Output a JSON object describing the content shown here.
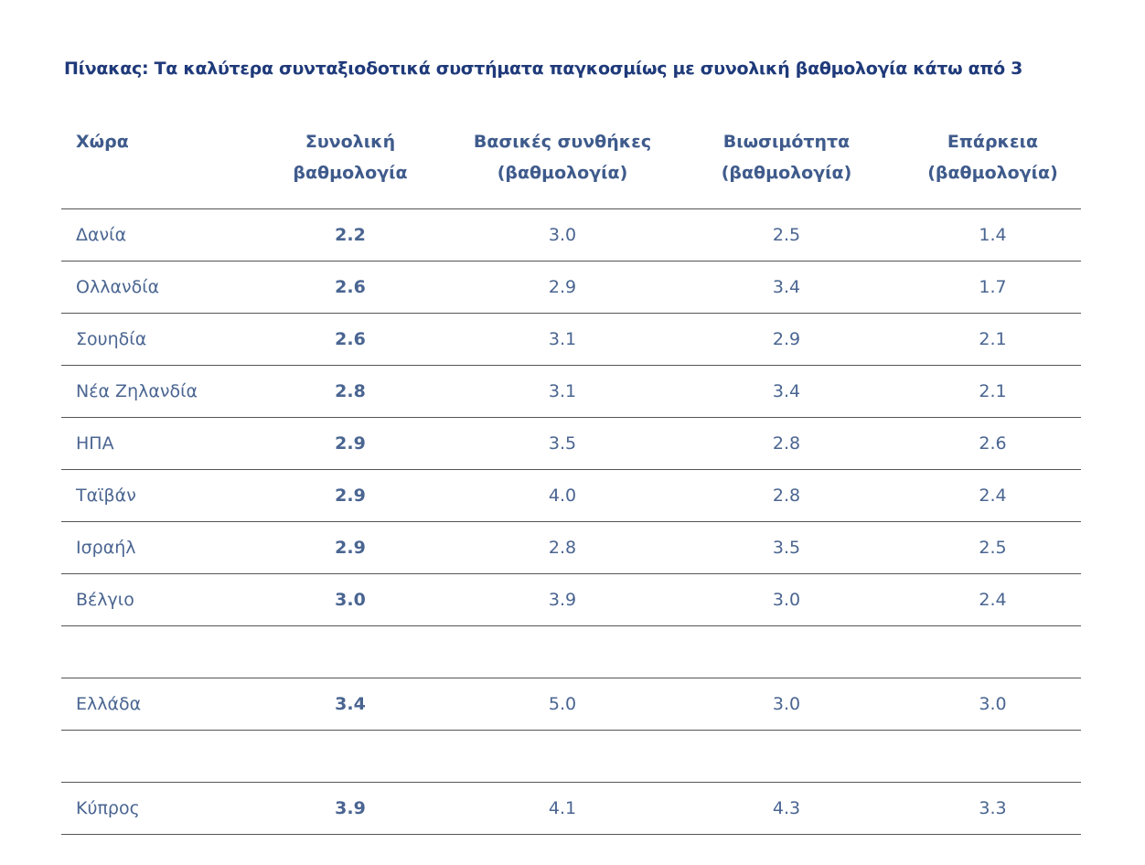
{
  "title": "Πίνακας: Τα καλύτερα συνταξιοδοτικά συστήματα παγκοσμίως με συνολική βαθμολογία κάτω από 3",
  "headers": [
    [
      "Χώρα",
      ""
    ],
    [
      "Συνολική",
      "βαθμολογία"
    ],
    [
      "Βασικές συνθήκες",
      "(βαθμολογία)"
    ],
    [
      "Βιωσιμότητα",
      "(βαθμολογία)"
    ],
    [
      "Επάρκεια",
      "(βαθμολογία)"
    ]
  ],
  "rows": [
    [
      "Δανία",
      "2.2",
      "3.0",
      "2.5",
      "1.4"
    ],
    [
      "Ολλανδία",
      "2.6",
      "2.9",
      "3.4",
      "1.7"
    ],
    [
      "Σουηδία",
      "2.6",
      "3.1",
      "2.9",
      "2.1"
    ],
    [
      "Νέα Ζηλανδία",
      "2.8",
      "3.1",
      "3.4",
      "2.1"
    ],
    [
      "ΗΠΑ",
      "2.9",
      "3.5",
      "2.8",
      "2.6"
    ],
    [
      "Ταϊβάν",
      "2.9",
      "4.0",
      "2.8",
      "2.4"
    ],
    [
      "Ισραήλ",
      "2.9",
      "2.8",
      "3.5",
      "2.5"
    ],
    [
      "Βέλγιο",
      "3.0",
      "3.9",
      "3.0",
      "2.4"
    ],
    [
      "",
      "",
      "",
      "",
      ""
    ],
    [
      "Ελλάδα",
      "3.4",
      "5.0",
      "3.0",
      "3.0"
    ],
    [
      "",
      "",
      "",
      "",
      ""
    ],
    [
      "Κύπρος",
      "3.9",
      "4.1",
      "4.3",
      "3.3"
    ]
  ]
}
